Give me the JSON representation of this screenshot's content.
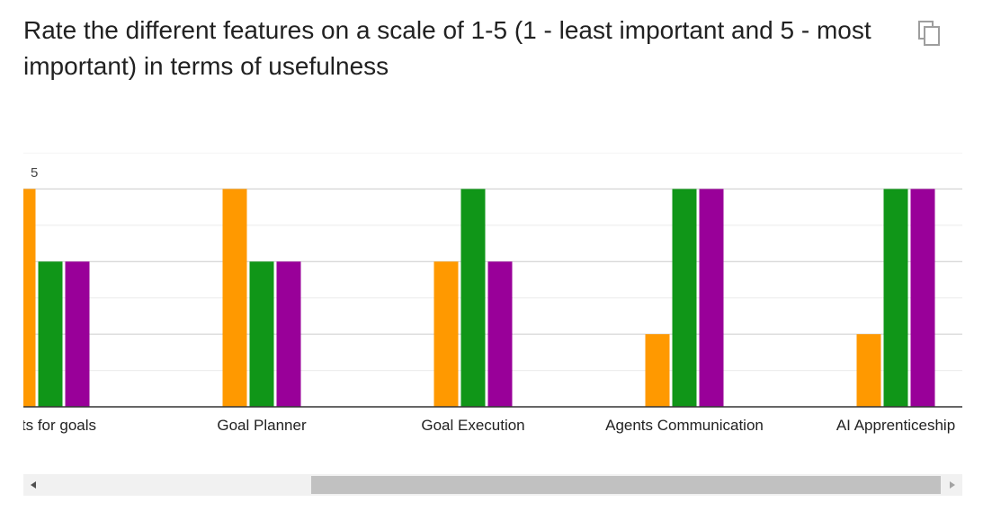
{
  "question": {
    "title": "Rate the different features on a scale of 1-5 (1 - least important and 5 - most important) in terms of usefulness"
  },
  "icons": {
    "copy": "copy-icon",
    "scroll_left": "scroll-left-arrow-icon",
    "scroll_right": "scroll-right-arrow-icon"
  },
  "colors": {
    "series_orange": "#ff9900",
    "series_green": "#109618",
    "series_purple": "#990099",
    "grid_major": "#cccccc",
    "grid_minor": "#ebebeb",
    "axis": "#333333"
  },
  "chart_data": {
    "type": "bar",
    "categories": [
      "ents for goals",
      "Goal Planner",
      "Goal Execution",
      "Agents Communication",
      "AI Apprenticeship"
    ],
    "series": [
      {
        "values": [
          3,
          3,
          2,
          1,
          1
        ]
      },
      {
        "values": [
          2,
          2,
          3,
          3,
          3
        ]
      },
      {
        "values": [
          2,
          2,
          2,
          3,
          3
        ]
      }
    ],
    "y_tick_labels": [
      "5"
    ],
    "ylim": [
      0,
      3.5
    ],
    "grid": true,
    "legend": "none",
    "horizontally_scrolled": true
  }
}
